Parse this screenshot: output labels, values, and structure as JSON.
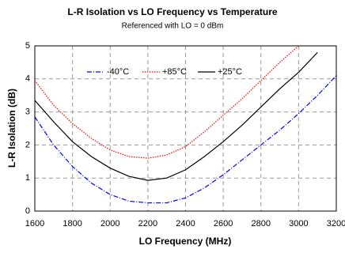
{
  "chart_data": {
    "type": "line",
    "title": "L-R Isolation vs LO Frequency vs Temperature",
    "subtitle": "Referenced with LO = 0 dBm",
    "x_label": "LO Frequency (MHz)",
    "y_label": "L-R Isolation (dB)",
    "x": [
      1600,
      1700,
      1800,
      1900,
      2000,
      2100,
      2200,
      2300,
      2400,
      2500,
      2600,
      2700,
      2800,
      2900,
      3000,
      3100,
      3200
    ],
    "series": [
      {
        "name": "-40°C",
        "color": "#0000ff",
        "dash": "dashdot",
        "values": [
          2.85,
          2.0,
          1.35,
          0.85,
          0.5,
          0.3,
          0.25,
          0.25,
          0.4,
          0.7,
          1.1,
          1.55,
          2.0,
          2.45,
          2.95,
          3.5,
          4.1
        ]
      },
      {
        "name": "+85°C",
        "color": "#ff0000",
        "dash": "dotted",
        "values": [
          3.95,
          3.2,
          2.65,
          2.2,
          1.85,
          1.65,
          1.6,
          1.7,
          1.95,
          2.4,
          2.9,
          3.4,
          3.95,
          4.5,
          5.0,
          null,
          null
        ]
      },
      {
        "name": "+25°C",
        "color": "#000000",
        "dash": "solid",
        "values": [
          3.35,
          2.7,
          2.1,
          1.65,
          1.3,
          1.05,
          0.93,
          1.0,
          1.25,
          1.65,
          2.1,
          2.6,
          3.15,
          3.7,
          4.2,
          4.8,
          null
        ]
      }
    ],
    "xlim": [
      1600,
      3200
    ],
    "ylim": [
      0,
      5
    ],
    "xticks": [
      1600,
      1800,
      2000,
      2200,
      2400,
      2600,
      2800,
      3000,
      3200
    ],
    "yticks": [
      0,
      1,
      2,
      3,
      4,
      5
    ],
    "grid": true,
    "legend": "top-left"
  }
}
